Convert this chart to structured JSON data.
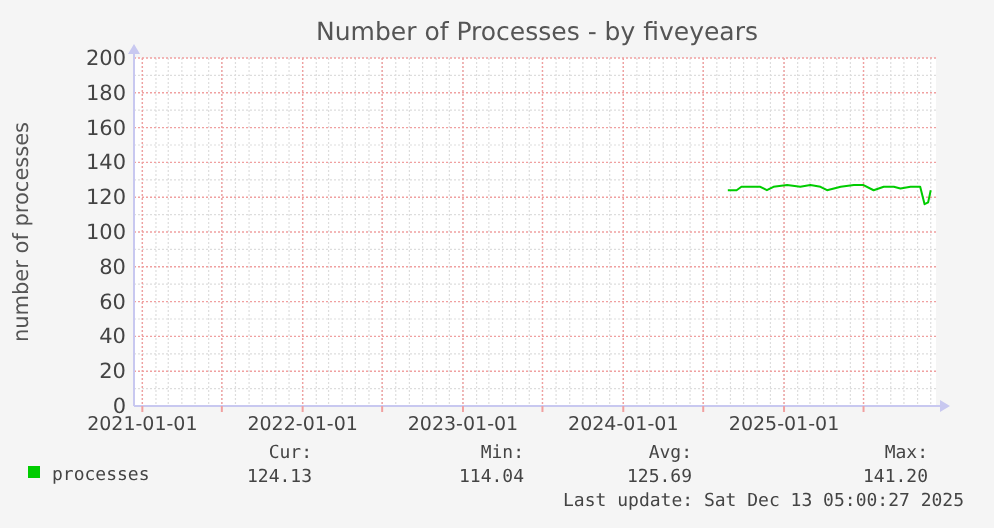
{
  "chart_data": {
    "type": "line",
    "title": "Number of Processes - by fiveyears",
    "ylabel": "number of processes",
    "xlim": [
      "2020-12-13",
      "2025-12-13"
    ],
    "xticks": [
      "2021-01-01",
      {
        "value": "2021-07-01",
        "label": null
      },
      "2022-01-01",
      {
        "value": "2022-07-01",
        "label": null
      },
      "2023-01-01",
      {
        "value": "2023-07-01",
        "label": null
      },
      "2024-01-01",
      {
        "value": "2024-07-01",
        "label": null
      },
      "2025-01-01",
      {
        "value": "2025-07-01",
        "label": null
      }
    ],
    "ylim": [
      0,
      200
    ],
    "yticks": [
      0,
      20,
      40,
      60,
      80,
      100,
      120,
      140,
      160,
      180,
      200
    ],
    "grid": true,
    "legend": "bottom left",
    "line_style": "solid",
    "series": [
      {
        "name": "processes",
        "color": "#00cc00",
        "x": [
          "2024-08-26",
          "2024-09-15",
          "2024-09-26",
          "2024-10-24",
          "2024-11-08",
          "2024-11-23",
          "2024-12-08",
          "2025-01-08",
          "2025-02-07",
          "2025-03-02",
          "2025-03-25",
          "2025-04-09",
          "2025-05-10",
          "2025-06-09",
          "2025-07-01",
          "2025-07-24",
          "2025-08-16",
          "2025-09-08",
          "2025-09-23",
          "2025-10-16",
          "2025-11-07",
          "2025-11-17",
          "2025-11-25",
          "2025-12-01"
        ],
        "values": [
          124,
          124,
          126,
          126,
          126,
          124,
          126,
          127,
          126,
          127,
          126,
          124,
          126,
          127,
          127,
          124,
          126,
          126,
          125,
          126,
          126,
          116,
          117,
          124
        ]
      }
    ],
    "annotations": [
      "Cur:",
      "124.13",
      "Min:",
      "114.04",
      "Avg:",
      "125.69",
      "Max:",
      "141.20",
      "Last update: Sat Dec 13 05:00:27 2025"
    ]
  }
}
